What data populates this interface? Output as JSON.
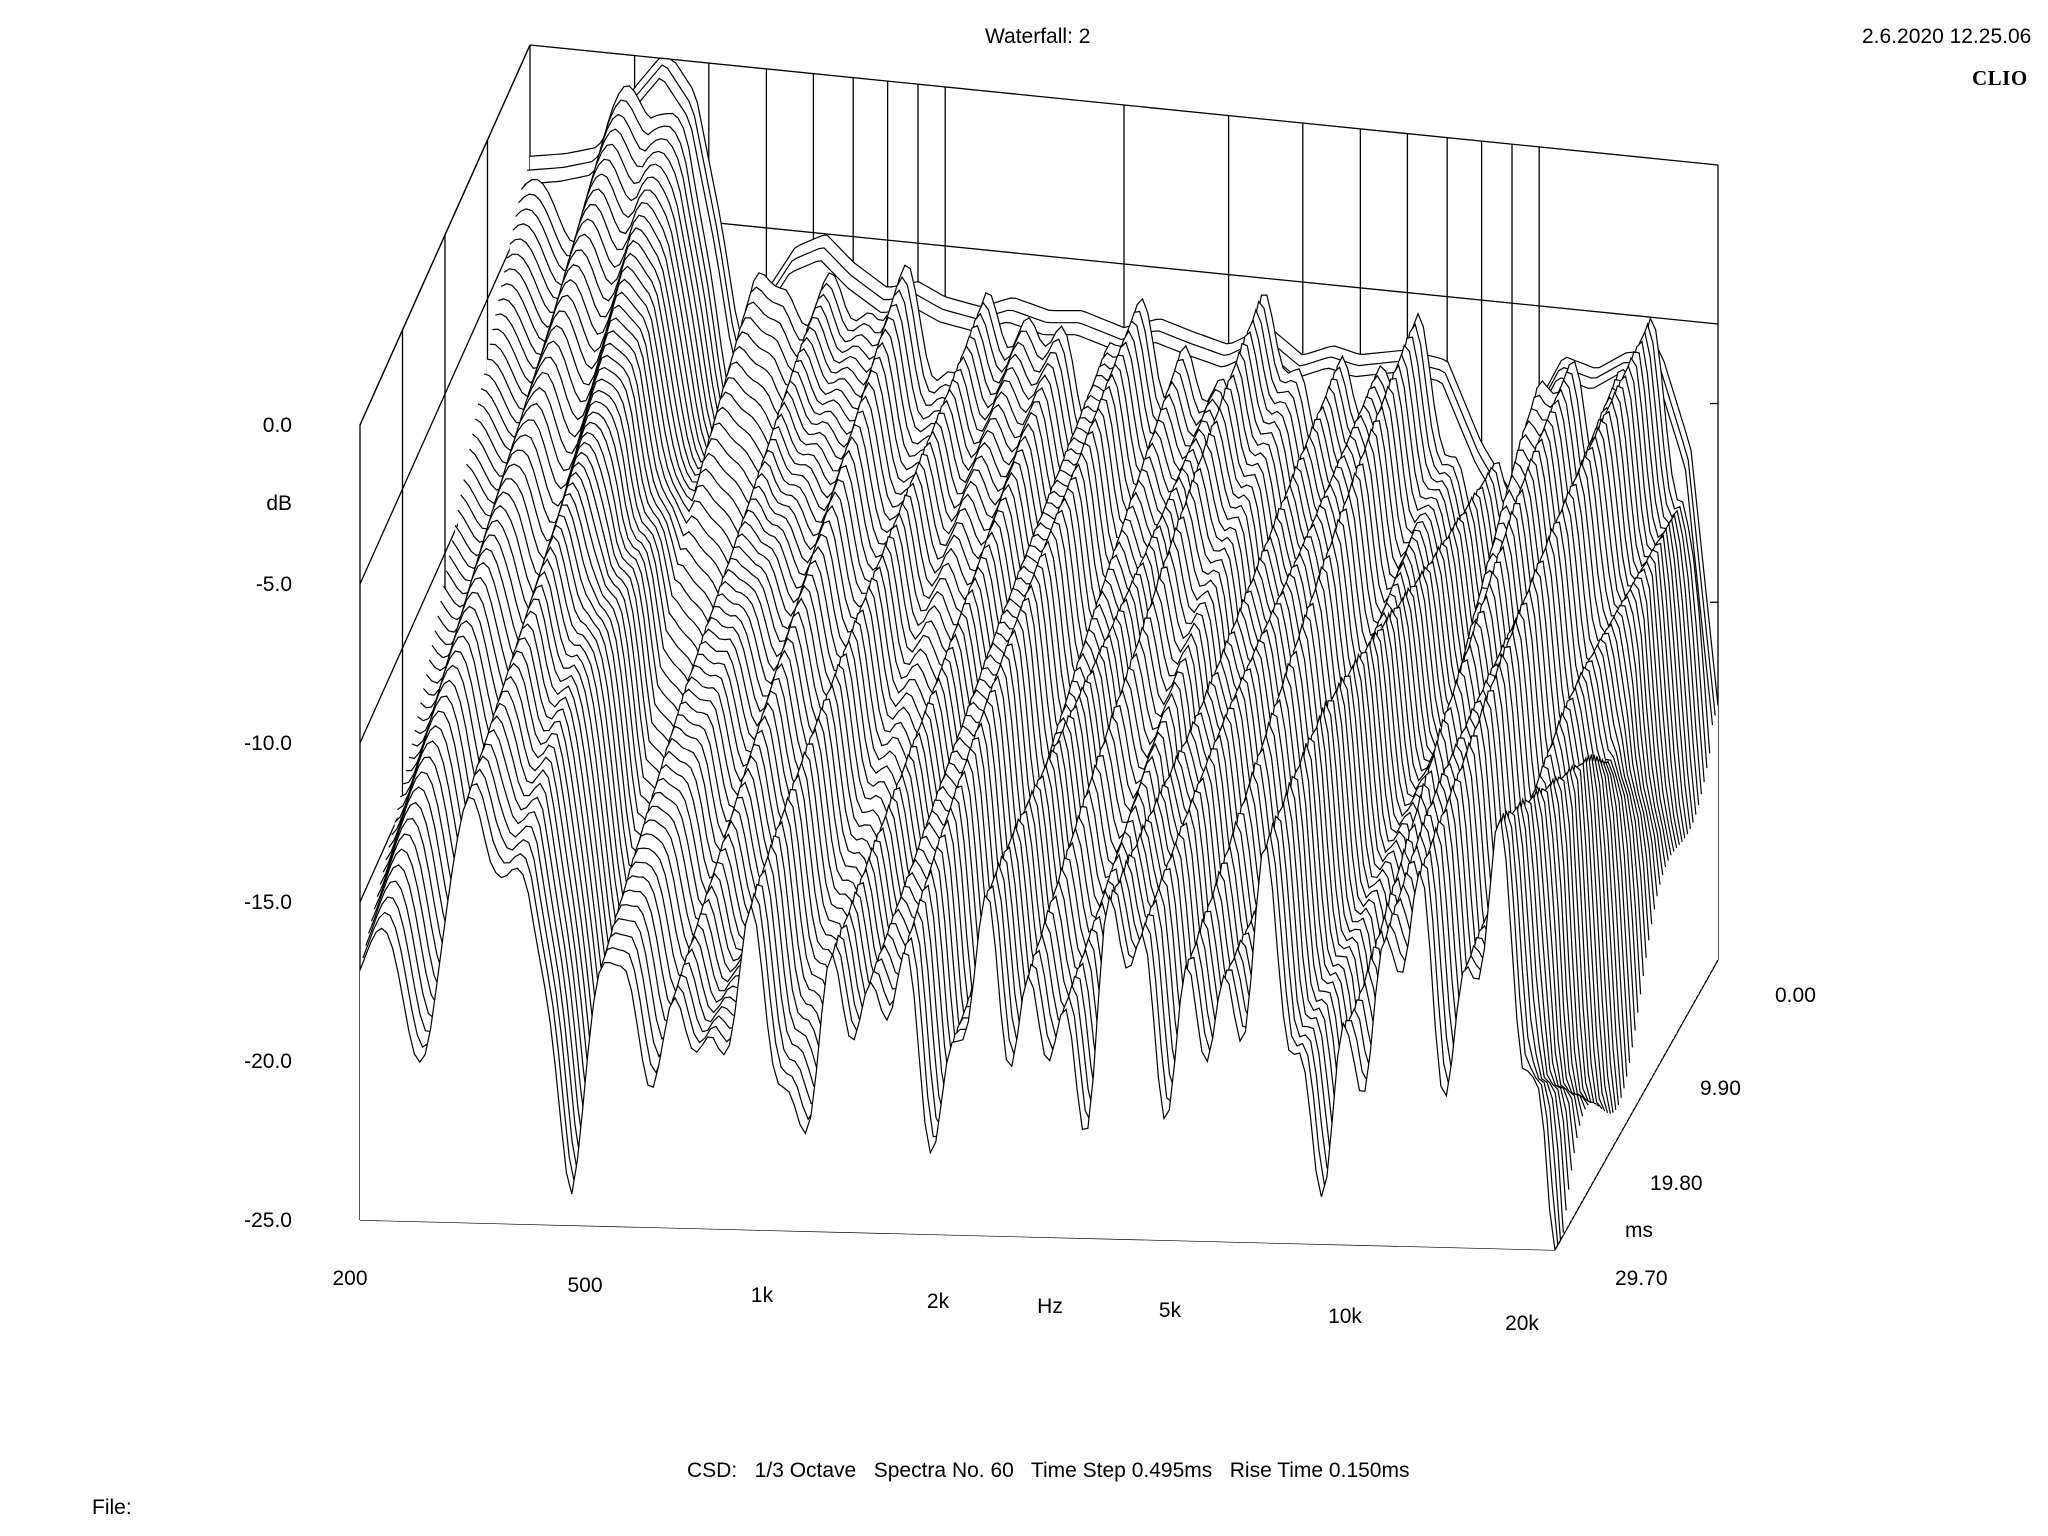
{
  "header": {
    "title": "Waterfall: 2",
    "timestamp": "2.6.2020 12.25.06",
    "brand": "CLIO"
  },
  "footer": {
    "info": "CSD:   1/3 Octave   Spectra No. 60   Time Step 0.495ms   Rise Time 0.150ms",
    "file_label": "File:"
  },
  "chart_data": {
    "type": "waterfall",
    "title": "Waterfall: 2",
    "xlabel": "Hz",
    "ylabel": "dB",
    "zlabel": "ms",
    "x_scale": "log",
    "x_range": [
      200,
      20000
    ],
    "x_ticks": [
      "200",
      "500",
      "1k",
      "2k",
      "5k",
      "10k",
      "20k"
    ],
    "y_range": [
      -25.0,
      0.0
    ],
    "y_ticks": [
      "0.0",
      "-5.0",
      "-10.0",
      "-15.0",
      "-20.0",
      "-25.0"
    ],
    "z_range": [
      0.0,
      29.7
    ],
    "z_ticks": [
      "0.00",
      "9.90",
      "19.80",
      "29.70"
    ],
    "grid": true,
    "slice_count": 60,
    "time_step_ms": 0.495,
    "first_slice": {
      "freq_hz": [
        200,
        230,
        260,
        300,
        340,
        380,
        420,
        450,
        500,
        560,
        630,
        700,
        800,
        900,
        1000,
        1150,
        1300,
        1500,
        1700,
        2000,
        2300,
        2600,
        3000,
        3500,
        4000,
        4500,
        5000,
        6000,
        7000,
        8000,
        9000,
        10000,
        11000,
        12500,
        14000,
        16000,
        18000,
        20000
      ],
      "db": [
        -3.5,
        -3.3,
        -3.0,
        -1.0,
        0.3,
        -1.0,
        -5.0,
        -8.5,
        -7.0,
        -5.5,
        -5.0,
        -5.8,
        -6.5,
        -6.2,
        -6.6,
        -6.8,
        -6.4,
        -6.7,
        -6.6,
        -7.0,
        -6.6,
        -6.9,
        -7.2,
        -6.5,
        -7.3,
        -6.9,
        -7.1,
        -6.8,
        -7.0,
        -9.5,
        -11.0,
        -8.0,
        -6.5,
        -6.8,
        -6.2,
        -6.0,
        -9.0,
        -17.0
      ]
    }
  }
}
